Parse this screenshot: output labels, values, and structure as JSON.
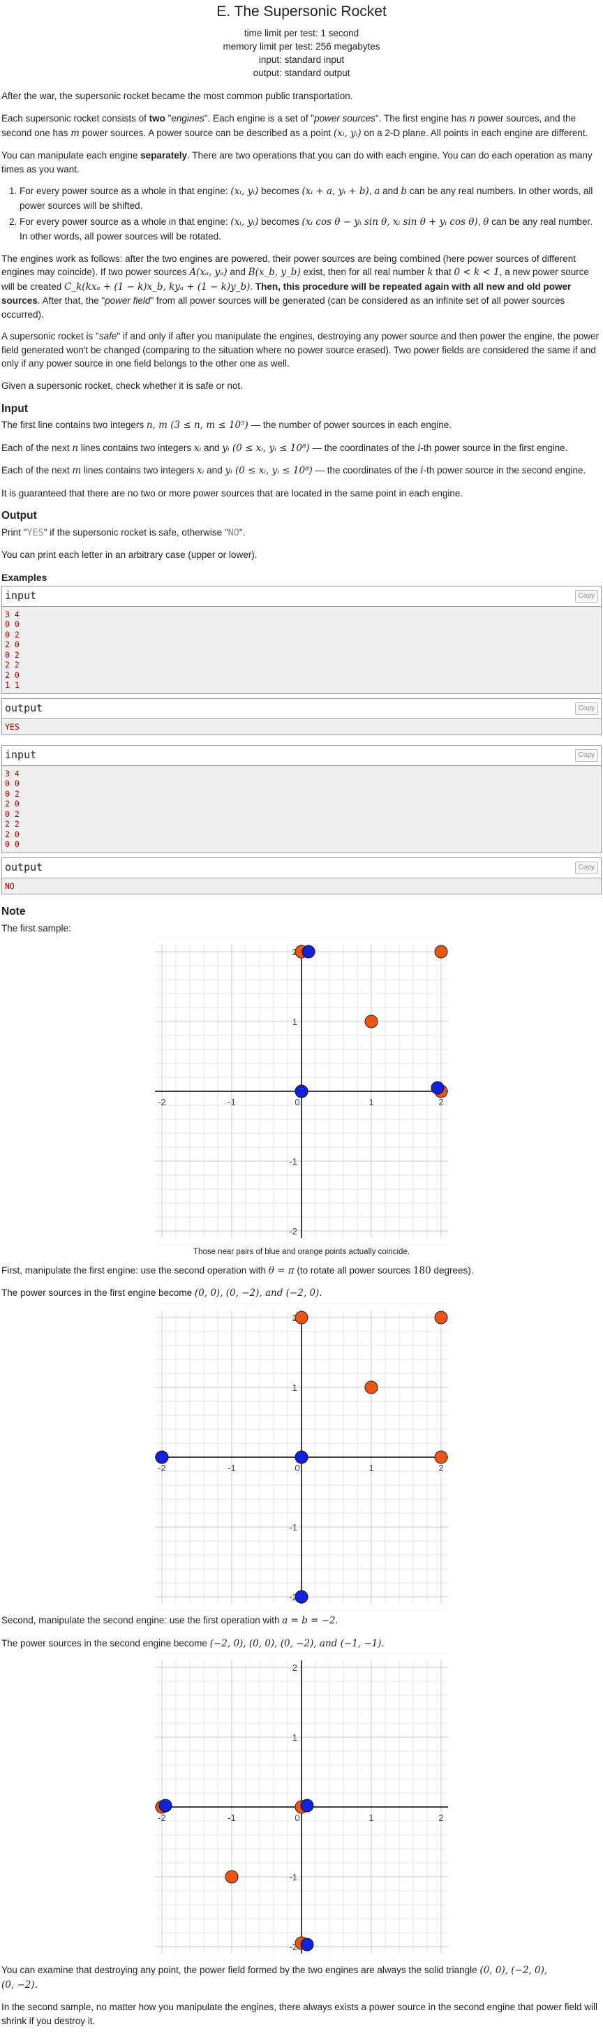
{
  "header": {
    "title": "E. The Supersonic Rocket",
    "time_limit": "time limit per test: 1 second",
    "memory_limit": "memory limit per test: 256 megabytes",
    "input": "input: standard input",
    "output": "output: standard output"
  },
  "statement": {
    "p1": "After the war, the supersonic rocket became the most common public transportation.",
    "p2_a": "Each supersonic rocket consists of ",
    "p2_b": "two",
    "p2_c": " \"",
    "p2_d": "engines",
    "p2_e": "\". Each engine is a set of \"",
    "p2_f": "power sources",
    "p2_g": "\". The first engine has ",
    "p2_h": " power sources, and the second one has ",
    "p2_i": " power sources. A power source can be described as a point ",
    "p2_j": " on a 2-D plane. All points in each engine are different.",
    "p3_a": "You can manipulate each engine ",
    "p3_b": "separately",
    "p3_c": ". There are two operations that you can do with each engine. You can do each operation as many times as you want.",
    "op1_a": "For every power source as a whole in that engine: ",
    "op1_b": " becomes ",
    "op1_c": ", ",
    "op1_d": " and ",
    "op1_e": " can be any real numbers. In other words, all power sources will be shifted.",
    "op2_a": "For every power source as a whole in that engine: ",
    "op2_b": " becomes ",
    "op2_c": ", ",
    "op2_d": " can be any real number. In other words, all power sources will be rotated.",
    "p4_a": "The engines work as follows: after the two engines are powered, their power sources are being combined (here power sources of different engines may coincide). If two power sources ",
    "p4_b": " and ",
    "p4_c": " exist, then for all real number ",
    "p4_d": " that ",
    "p4_e": ", a new power source will be created ",
    "p4_f": ". ",
    "p4_g": "Then, this procedure will be repeated again with all new and old power sources",
    "p4_h": ". After that, the \"",
    "p4_i": "power field",
    "p4_j": "\" from all power sources will be generated (can be considered as an infinite set of all power sources occurred).",
    "p5_a": "A supersonic rocket is \"",
    "p5_b": "safe",
    "p5_c": "\" if and only if after you manipulate the engines, destroying any power source and then power the engine, the power field generated won't be changed (comparing to the situation where no power source erased). Two power fields are considered the same if and only if any power source in one field belongs to the other one as well.",
    "p6": "Given a supersonic rocket, check whether it is safe or not."
  },
  "math": {
    "n": "n",
    "m": "m",
    "xy": "(x",
    "xi_yi": "(xᵢ, yᵢ)",
    "shift": "(xᵢ + a, yᵢ + b)",
    "a": "a",
    "b": "b",
    "rot": "(xᵢ cos θ − yᵢ sin θ, xᵢ sin θ + yᵢ cos θ)",
    "theta": "θ",
    "A": "A(xₐ, yₐ)",
    "B": "B(x_b, y_b)",
    "k": "k",
    "krange": "0 < k < 1",
    "Ck": "C_k(kxₐ + (1 − k)x_b, kyₐ + (1 − k)y_b)",
    "nm": "n, m (3 ≤ n, m ≤ 10⁵)",
    "xi": "xᵢ",
    "yi_range1": "yᵢ (0 ≤ xᵢ, yᵢ ≤ 10⁸)",
    "ith": "i",
    "theta_pi": "θ = π",
    "deg": "180",
    "first_pts": "(0, 0), (0, −2), and (−2, 0).",
    "ab": "a = b = −2",
    "second_pts": "(−2, 0), (0, 0), (0, −2), and (−1, −1).",
    "tri": "(0, 0), (−2, 0),",
    "tri2": "(0, −2)."
  },
  "input_section": {
    "heading": "Input",
    "l1_a": "The first line contains two integers ",
    "l1_b": " — the number of power sources in each engine.",
    "l2_a": "Each of the next ",
    "l2_b": " lines contains two integers ",
    "l2_c": " and ",
    "l2_d": " — the coordinates of the ",
    "l2_e": "-th power source in the first engine.",
    "l3_a": "Each of the next ",
    "l3_b": " lines contains two integers ",
    "l3_c": " and ",
    "l3_d": " — the coordinates of the ",
    "l3_e": "-th power source in the second engine.",
    "l4": "It is guaranteed that there are no two or more power sources that are located in the same point in each engine."
  },
  "output_section": {
    "heading": "Output",
    "l1_a": "Print \"",
    "yes": "YES",
    "l1_b": "\" if the supersonic rocket is safe, otherwise \"",
    "no": "NO",
    "l1_c": "\".",
    "l2": "You can print each letter in an arbitrary case (upper or lower)."
  },
  "examples": {
    "heading": "Examples",
    "input_label": "input",
    "output_label": "output",
    "copy": "Copy",
    "ex1_input": "3 4\n0 0\n0 2\n2 0\n0 2\n2 2\n2 0\n1 1",
    "ex1_output": "YES",
    "ex2_input": "3 4\n0 0\n0 2\n2 0\n0 2\n2 2\n2 0\n0 0",
    "ex2_output": "NO"
  },
  "note": {
    "heading": "Note",
    "first_sample": "The first sample:",
    "caption1": "Those near pairs of blue and orange points actually coincide.",
    "n1_a": "First, manipulate the first engine: use the second operation with ",
    "n1_b": " (to rotate all power sources ",
    "n1_c": " degrees).",
    "n2_a": "The power sources in the first engine become ",
    "n3_a": "Second, manipulate the second engine: use the first operation with ",
    "n3_b": ".",
    "n4_a": "The power sources in the second engine become ",
    "n5_a": "You can examine that destroying any point, the power field formed by the two engines are always the solid triangle ",
    "n6": "In the second sample, no matter how you manipulate the engines, there always exists a power source in the second engine that power field will shrink if you destroy it."
  },
  "plots": {
    "ticks": [
      "-2",
      "-1",
      "0",
      "1",
      "2"
    ],
    "blue": "#1122dd",
    "orange": "#ee5511",
    "plot1": {
      "blue": [
        [
          0.1,
          2
        ],
        [
          0,
          0
        ],
        [
          1.95,
          0.05
        ]
      ],
      "orange": [
        [
          0,
          2
        ],
        [
          2,
          2
        ],
        [
          1,
          1
        ],
        [
          2,
          0
        ]
      ]
    },
    "plot2": {
      "blue": [
        [
          -2,
          0
        ],
        [
          0,
          0
        ],
        [
          0,
          -2
        ]
      ],
      "orange": [
        [
          0,
          2
        ],
        [
          2,
          2
        ],
        [
          1,
          1
        ],
        [
          2,
          0
        ]
      ]
    },
    "plot3": {
      "blue": [
        [
          -1.95,
          0.02
        ],
        [
          0.08,
          0.02
        ],
        [
          0.08,
          -1.97
        ]
      ],
      "orange": [
        [
          -2,
          0
        ],
        [
          0,
          0
        ],
        [
          0,
          -1.95
        ],
        [
          -1,
          -1
        ]
      ]
    }
  }
}
